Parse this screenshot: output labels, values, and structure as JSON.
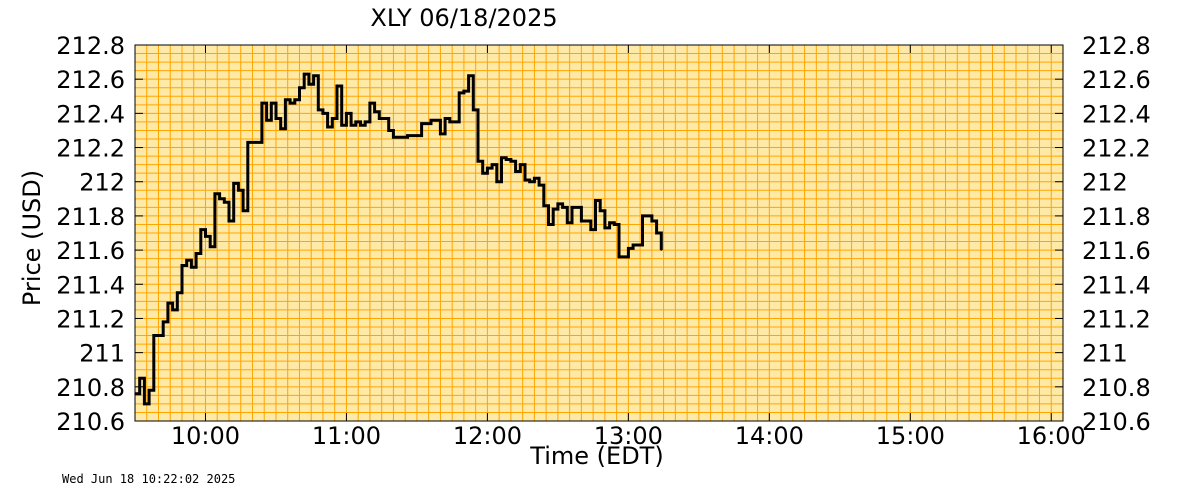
{
  "footer_timestamp": "Wed Jun 18 10:22:02 2025",
  "colors": {
    "plot_background": "#ffe9a6",
    "grid": "#ffa500",
    "line": "#000000"
  },
  "chart_data": {
    "type": "line",
    "title": "XLY  06/18/2025",
    "xlabel": "Time (EDT)",
    "ylabel": "Price (USD)",
    "xlim": [
      "09:30",
      "16:05"
    ],
    "ylim": [
      210.6,
      212.8
    ],
    "grid": true,
    "step": true,
    "yticks": [
      210.6,
      210.8,
      211,
      211.2,
      211.4,
      211.6,
      211.8,
      212,
      212.2,
      212.4,
      212.6,
      212.8
    ],
    "ytick_labels": [
      "210.6",
      "210.8",
      "211",
      "211.2",
      "211.4",
      "211.6",
      "211.8",
      "212",
      "212.2",
      "212.4",
      "212.6",
      "212.8"
    ],
    "xticks": [
      "10:00",
      "11:00",
      "12:00",
      "13:00",
      "14:00",
      "15:00",
      "16:00"
    ],
    "series": [
      {
        "points": [
          [
            "09:30",
            210.76
          ],
          [
            "09:32",
            210.85
          ],
          [
            "09:34",
            210.7
          ],
          [
            "09:36",
            210.78
          ],
          [
            "09:38",
            211.1
          ],
          [
            "09:40",
            211.1
          ],
          [
            "09:42",
            211.18
          ],
          [
            "09:44",
            211.29
          ],
          [
            "09:46",
            211.25
          ],
          [
            "09:48",
            211.35
          ],
          [
            "09:50",
            211.51
          ],
          [
            "09:52",
            211.54
          ],
          [
            "09:54",
            211.5
          ],
          [
            "09:56",
            211.58
          ],
          [
            "09:58",
            211.72
          ],
          [
            "10:00",
            211.68
          ],
          [
            "10:02",
            211.62
          ],
          [
            "10:04",
            211.93
          ],
          [
            "10:06",
            211.9
          ],
          [
            "10:08",
            211.88
          ],
          [
            "10:10",
            211.77
          ],
          [
            "10:12",
            211.99
          ],
          [
            "10:14",
            211.95
          ],
          [
            "10:16",
            211.83
          ],
          [
            "10:18",
            212.23
          ],
          [
            "10:20",
            212.23
          ],
          [
            "10:22",
            212.23
          ],
          [
            "10:24",
            212.46
          ],
          [
            "10:26",
            212.36
          ],
          [
            "10:28",
            212.46
          ],
          [
            "10:30",
            212.37
          ],
          [
            "10:32",
            212.31
          ],
          [
            "10:34",
            212.48
          ],
          [
            "10:36",
            212.46
          ],
          [
            "10:38",
            212.48
          ],
          [
            "10:40",
            212.55
          ],
          [
            "10:42",
            212.63
          ],
          [
            "10:44",
            212.57
          ],
          [
            "10:46",
            212.62
          ],
          [
            "10:48",
            212.42
          ],
          [
            "10:50",
            212.4
          ],
          [
            "10:52",
            212.32
          ],
          [
            "10:54",
            212.37
          ],
          [
            "10:56",
            212.56
          ],
          [
            "10:58",
            212.33
          ],
          [
            "11:00",
            212.4
          ],
          [
            "11:02",
            212.33
          ],
          [
            "11:04",
            212.35
          ],
          [
            "11:06",
            212.33
          ],
          [
            "11:08",
            212.35
          ],
          [
            "11:10",
            212.46
          ],
          [
            "11:12",
            212.41
          ],
          [
            "11:14",
            212.37
          ],
          [
            "11:16",
            212.37
          ],
          [
            "11:18",
            212.3
          ],
          [
            "11:20",
            212.26
          ],
          [
            "11:22",
            212.26
          ],
          [
            "11:24",
            212.26
          ],
          [
            "11:26",
            212.27
          ],
          [
            "11:28",
            212.27
          ],
          [
            "11:30",
            212.27
          ],
          [
            "11:32",
            212.34
          ],
          [
            "11:34",
            212.34
          ],
          [
            "11:36",
            212.36
          ],
          [
            "11:38",
            212.36
          ],
          [
            "11:40",
            212.28
          ],
          [
            "11:42",
            212.37
          ],
          [
            "11:44",
            212.35
          ],
          [
            "11:46",
            212.35
          ],
          [
            "11:48",
            212.52
          ],
          [
            "11:50",
            212.53
          ],
          [
            "11:52",
            212.62
          ],
          [
            "11:54",
            212.42
          ],
          [
            "11:56",
            212.12
          ],
          [
            "11:58",
            212.05
          ],
          [
            "12:00",
            212.08
          ],
          [
            "12:02",
            212.1
          ],
          [
            "12:04",
            212.0
          ],
          [
            "12:06",
            212.14
          ],
          [
            "12:08",
            212.13
          ],
          [
            "12:10",
            212.12
          ],
          [
            "12:12",
            212.06
          ],
          [
            "12:14",
            212.1
          ],
          [
            "12:16",
            212.01
          ],
          [
            "12:18",
            212.0
          ],
          [
            "12:20",
            212.02
          ],
          [
            "12:22",
            211.98
          ],
          [
            "12:24",
            211.86
          ],
          [
            "12:26",
            211.75
          ],
          [
            "12:28",
            211.84
          ],
          [
            "12:30",
            211.87
          ],
          [
            "12:32",
            211.85
          ],
          [
            "12:34",
            211.76
          ],
          [
            "12:36",
            211.85
          ],
          [
            "12:38",
            211.85
          ],
          [
            "12:40",
            211.77
          ],
          [
            "12:42",
            211.77
          ],
          [
            "12:44",
            211.72
          ],
          [
            "12:46",
            211.89
          ],
          [
            "12:48",
            211.83
          ],
          [
            "12:50",
            211.73
          ],
          [
            "12:52",
            211.76
          ],
          [
            "12:54",
            211.75
          ],
          [
            "12:56",
            211.56
          ],
          [
            "12:58",
            211.56
          ],
          [
            "13:00",
            211.61
          ],
          [
            "13:02",
            211.63
          ],
          [
            "13:04",
            211.63
          ],
          [
            "13:06",
            211.8
          ],
          [
            "13:08",
            211.8
          ],
          [
            "13:10",
            211.77
          ],
          [
            "13:12",
            211.7
          ],
          [
            "13:14",
            211.6
          ]
        ]
      }
    ]
  }
}
